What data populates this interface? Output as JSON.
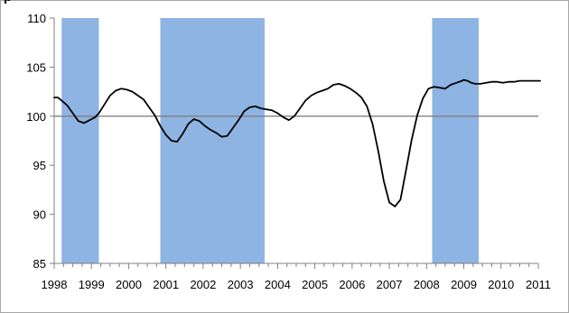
{
  "title_fragment": "p",
  "chart_data": {
    "type": "line",
    "title": "p",
    "xlabel": "",
    "ylabel": "",
    "x_tick_labels": [
      "1998",
      "1999",
      "2000",
      "2001",
      "2002",
      "2003",
      "2004",
      "2005",
      "2006",
      "2007",
      "2008",
      "2009",
      "2010",
      "2011"
    ],
    "y_tick_labels": [
      "85",
      "90",
      "95",
      "100",
      "105",
      "110"
    ],
    "xlim": [
      1998.0,
      2011.0
    ],
    "ylim": [
      85,
      110
    ],
    "reference_line": 100,
    "grid": false,
    "legend": "none",
    "shaded_periods": [
      {
        "start": 1998.2,
        "end": 1999.2
      },
      {
        "start": 2000.85,
        "end": 2003.65
      },
      {
        "start": 2008.15,
        "end": 2009.4
      }
    ],
    "series": [
      {
        "x": [
          1998.0,
          1998.1,
          1998.2,
          1998.35,
          1998.5,
          1998.65,
          1998.8,
          1998.95,
          1999.1,
          1999.2,
          1999.35,
          1999.5,
          1999.65,
          1999.8,
          1999.95,
          2000.1,
          2000.25,
          2000.4,
          2000.55,
          2000.7,
          2000.85,
          2001.0,
          2001.15,
          2001.3,
          2001.45,
          2001.6,
          2001.75,
          2001.9,
          2002.05,
          2002.2,
          2002.35,
          2002.5,
          2002.65,
          2002.8,
          2002.95,
          2003.1,
          2003.25,
          2003.4,
          2003.55,
          2003.7,
          2003.85,
          2004.0,
          2004.15,
          2004.3,
          2004.45,
          2004.6,
          2004.75,
          2004.9,
          2005.05,
          2005.2,
          2005.35,
          2005.5,
          2005.65,
          2005.8,
          2005.95,
          2006.1,
          2006.25,
          2006.4,
          2006.55,
          2006.7,
          2006.85,
          2007.0,
          2007.15,
          2007.3,
          2007.45,
          2007.6,
          2007.75,
          2007.9,
          2008.05,
          2008.2,
          2008.35,
          2008.5,
          2008.65,
          2008.8,
          2008.95,
          2009.0,
          2009.1,
          2009.2,
          2009.3,
          2009.45,
          2009.6,
          2009.75,
          2009.9,
          2010.05,
          2010.2,
          2010.35,
          2010.5,
          2010.65,
          2010.8,
          2010.95,
          2011.05
        ],
        "y": [
          101.9,
          101.9,
          101.6,
          101.1,
          100.3,
          99.5,
          99.3,
          99.6,
          99.9,
          100.3,
          101.2,
          102.1,
          102.6,
          102.8,
          102.7,
          102.5,
          102.1,
          101.7,
          100.9,
          100.1,
          99.0,
          98.1,
          97.5,
          97.4,
          98.2,
          99.2,
          99.7,
          99.5,
          99.0,
          98.6,
          98.3,
          97.9,
          98.0,
          98.8,
          99.6,
          100.5,
          100.9,
          101.0,
          100.8,
          100.7,
          100.6,
          100.3,
          99.9,
          99.6,
          100.0,
          100.8,
          101.6,
          102.1,
          102.4,
          102.6,
          102.8,
          103.2,
          103.3,
          103.1,
          102.8,
          102.4,
          101.9,
          101.0,
          99.2,
          96.5,
          93.4,
          91.2,
          90.8,
          91.5,
          94.5,
          97.6,
          100.1,
          101.8,
          102.8,
          103.0,
          102.9,
          102.8,
          103.2,
          103.4,
          103.6,
          103.7,
          103.6,
          103.4,
          103.3,
          103.3,
          103.4,
          103.5,
          103.5,
          103.4,
          103.5,
          103.5,
          103.6,
          103.6,
          103.6,
          103.6,
          103.6
        ]
      }
    ],
    "colors": {
      "shade": "#8db4e2",
      "line": "#000000",
      "reference": "#808080",
      "axis": "#808080"
    }
  }
}
